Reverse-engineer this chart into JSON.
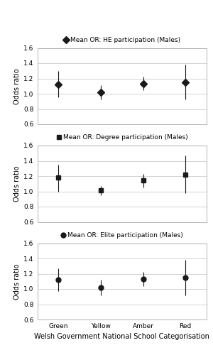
{
  "categories": [
    "Green",
    "Yellow",
    "Amber",
    "Red"
  ],
  "x_positions": [
    0,
    1,
    2,
    3
  ],
  "panels": [
    {
      "label": "Mean OR: HE participation (Males)",
      "marker": "D",
      "marker_size": 5,
      "values": [
        1.12,
        1.02,
        1.13,
        1.15
      ],
      "ci_low": [
        0.95,
        0.93,
        1.05,
        0.93
      ],
      "ci_high": [
        1.3,
        1.11,
        1.22,
        1.38
      ]
    },
    {
      "label": "Mean OR: Degree participation (Males)",
      "marker": "s",
      "marker_size": 5,
      "values": [
        1.18,
        1.01,
        1.14,
        1.22
      ],
      "ci_low": [
        1.0,
        0.95,
        1.05,
        0.98
      ],
      "ci_high": [
        1.35,
        1.07,
        1.23,
        1.47
      ]
    },
    {
      "label": "Mean OR: Elite participation (Males)",
      "marker": "o",
      "marker_size": 5,
      "values": [
        1.12,
        1.02,
        1.13,
        1.15
      ],
      "ci_low": [
        0.97,
        0.92,
        1.04,
        0.92
      ],
      "ci_high": [
        1.27,
        1.12,
        1.22,
        1.38
      ]
    }
  ],
  "ylim": [
    0.6,
    1.6
  ],
  "yticks": [
    0.6,
    0.8,
    1.0,
    1.2,
    1.4,
    1.6
  ],
  "ylabel": "Odds ratio",
  "xlabel": "Welsh Government National School Categorisation",
  "color": "#1a1a1a",
  "grid_color": "#cccccc",
  "bg_color": "#ffffff",
  "legend_fontsize": 6.5,
  "tick_fontsize": 6.5,
  "label_fontsize": 7
}
